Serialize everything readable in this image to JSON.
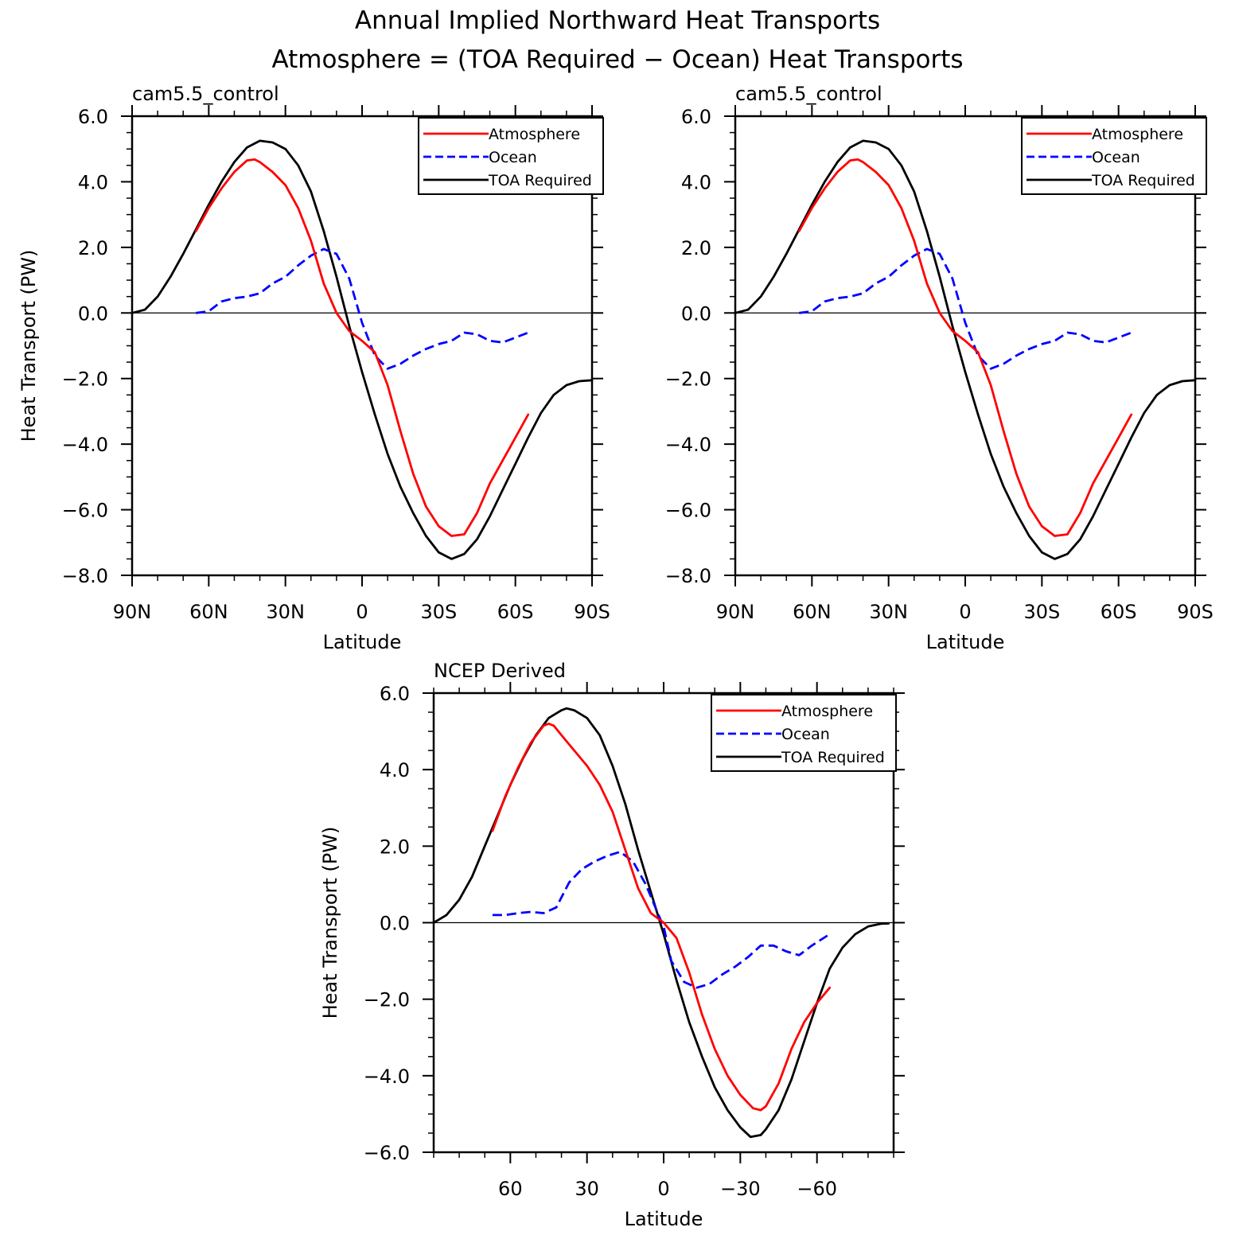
{
  "figure": {
    "title_line1": "Annual Implied Northward Heat Transports",
    "title_line2": "Atmosphere = (TOA Required − Ocean) Heat Transports"
  },
  "colors": {
    "atmosphere": "#ff0000",
    "ocean": "#0000ff",
    "toa": "#000000"
  },
  "chart_data": [
    {
      "type": "line",
      "title": "cam5.5_control",
      "xlabel": "Latitude",
      "ylabel": "Heat Transport (PW)",
      "xlim": [
        90,
        -90
      ],
      "ylim": [
        -8,
        6
      ],
      "xticks": [
        90,
        60,
        30,
        0,
        -30,
        -60,
        -90
      ],
      "xtick_labels": [
        "90N",
        "60N",
        "30N",
        "0",
        "30S",
        "60S",
        "90S"
      ],
      "yticks": [
        6,
        4,
        2,
        0,
        -2,
        -4,
        -6,
        -8
      ],
      "ytick_labels": [
        "6.0",
        "4.0",
        "2.0",
        "0.0",
        "−2.0",
        "−4.0",
        "−6.0",
        "−8.0"
      ],
      "legend_position": "top-right",
      "series": [
        {
          "name": "Atmosphere",
          "style": "solid",
          "color_key": "atmosphere",
          "x": [
            65,
            60,
            55,
            50,
            45,
            42,
            40,
            35,
            30,
            25,
            20,
            15,
            10,
            5,
            0,
            -5,
            -10,
            -15,
            -20,
            -25,
            -30,
            -35,
            -40,
            -45,
            -50,
            -55,
            -60,
            -65
          ],
          "y": [
            2.5,
            3.2,
            3.8,
            4.3,
            4.65,
            4.68,
            4.6,
            4.3,
            3.9,
            3.2,
            2.2,
            0.9,
            0.0,
            -0.55,
            -0.85,
            -1.2,
            -2.2,
            -3.6,
            -4.9,
            -5.9,
            -6.5,
            -6.8,
            -6.75,
            -6.1,
            -5.2,
            -4.5,
            -3.8,
            -3.1
          ]
        },
        {
          "name": "Ocean",
          "style": "dashed",
          "color_key": "ocean",
          "x": [
            65,
            60,
            55,
            50,
            45,
            40,
            35,
            30,
            25,
            20,
            15,
            10,
            5,
            0,
            -5,
            -10,
            -15,
            -20,
            -25,
            -30,
            -35,
            -40,
            -45,
            -50,
            -55,
            -60,
            -65
          ],
          "y": [
            0.0,
            0.05,
            0.35,
            0.45,
            0.5,
            0.6,
            0.9,
            1.1,
            1.45,
            1.75,
            1.95,
            1.8,
            1.05,
            -0.3,
            -1.3,
            -1.7,
            -1.55,
            -1.3,
            -1.1,
            -0.95,
            -0.85,
            -0.6,
            -0.65,
            -0.85,
            -0.9,
            -0.75,
            -0.6
          ]
        },
        {
          "name": "TOA Required",
          "style": "solid",
          "color_key": "toa",
          "x": [
            90,
            85,
            80,
            75,
            70,
            65,
            60,
            55,
            50,
            45,
            40,
            35,
            30,
            25,
            20,
            15,
            10,
            5,
            0,
            -5,
            -10,
            -15,
            -20,
            -25,
            -30,
            -35,
            -40,
            -45,
            -50,
            -55,
            -60,
            -65,
            -70,
            -75,
            -80,
            -85,
            -90
          ],
          "y": [
            0.0,
            0.1,
            0.5,
            1.1,
            1.8,
            2.55,
            3.3,
            4.0,
            4.6,
            5.05,
            5.25,
            5.2,
            5.0,
            4.5,
            3.7,
            2.5,
            1.1,
            -0.4,
            -1.8,
            -3.1,
            -4.3,
            -5.3,
            -6.1,
            -6.8,
            -7.3,
            -7.5,
            -7.35,
            -6.9,
            -6.2,
            -5.4,
            -4.6,
            -3.8,
            -3.05,
            -2.5,
            -2.2,
            -2.08,
            -2.05
          ]
        }
      ]
    },
    {
      "type": "line",
      "title": "cam5.5_control",
      "xlabel": "Latitude",
      "ylabel": "",
      "xlim": [
        90,
        -90
      ],
      "ylim": [
        -8,
        6
      ],
      "xticks": [
        90,
        60,
        30,
        0,
        -30,
        -60,
        -90
      ],
      "xtick_labels": [
        "90N",
        "60N",
        "30N",
        "0",
        "30S",
        "60S",
        "90S"
      ],
      "yticks": [
        6,
        4,
        2,
        0,
        -2,
        -4,
        -6,
        -8
      ],
      "ytick_labels": [
        "6.0",
        "4.0",
        "2.0",
        "0.0",
        "−2.0",
        "−4.0",
        "−6.0",
        "−8.0"
      ],
      "legend_position": "top-right",
      "series": [
        {
          "name": "Atmosphere",
          "style": "solid",
          "color_key": "atmosphere",
          "x": [
            65,
            60,
            55,
            50,
            45,
            42,
            40,
            35,
            30,
            25,
            20,
            15,
            10,
            5,
            0,
            -5,
            -10,
            -15,
            -20,
            -25,
            -30,
            -35,
            -40,
            -45,
            -50,
            -55,
            -60,
            -65
          ],
          "y": [
            2.5,
            3.2,
            3.8,
            4.3,
            4.65,
            4.68,
            4.6,
            4.3,
            3.9,
            3.2,
            2.2,
            0.9,
            0.0,
            -0.55,
            -0.85,
            -1.2,
            -2.2,
            -3.6,
            -4.9,
            -5.9,
            -6.5,
            -6.8,
            -6.75,
            -6.1,
            -5.2,
            -4.5,
            -3.8,
            -3.1
          ]
        },
        {
          "name": "Ocean",
          "style": "dashed",
          "color_key": "ocean",
          "x": [
            65,
            60,
            55,
            50,
            45,
            40,
            35,
            30,
            25,
            20,
            15,
            10,
            5,
            0,
            -5,
            -10,
            -15,
            -20,
            -25,
            -30,
            -35,
            -40,
            -45,
            -50,
            -55,
            -60,
            -65
          ],
          "y": [
            0.0,
            0.05,
            0.35,
            0.45,
            0.5,
            0.6,
            0.9,
            1.1,
            1.45,
            1.75,
            1.95,
            1.8,
            1.05,
            -0.3,
            -1.3,
            -1.7,
            -1.55,
            -1.3,
            -1.1,
            -0.95,
            -0.85,
            -0.6,
            -0.65,
            -0.85,
            -0.9,
            -0.75,
            -0.6
          ]
        },
        {
          "name": "TOA Required",
          "style": "solid",
          "color_key": "toa",
          "x": [
            90,
            85,
            80,
            75,
            70,
            65,
            60,
            55,
            50,
            45,
            40,
            35,
            30,
            25,
            20,
            15,
            10,
            5,
            0,
            -5,
            -10,
            -15,
            -20,
            -25,
            -30,
            -35,
            -40,
            -45,
            -50,
            -55,
            -60,
            -65,
            -70,
            -75,
            -80,
            -85,
            -90
          ],
          "y": [
            0.0,
            0.1,
            0.5,
            1.1,
            1.8,
            2.55,
            3.3,
            4.0,
            4.6,
            5.05,
            5.25,
            5.2,
            5.0,
            4.5,
            3.7,
            2.5,
            1.1,
            -0.4,
            -1.8,
            -3.1,
            -4.3,
            -5.3,
            -6.1,
            -6.8,
            -7.3,
            -7.5,
            -7.35,
            -6.9,
            -6.2,
            -5.4,
            -4.6,
            -3.8,
            -3.05,
            -2.5,
            -2.2,
            -2.08,
            -2.05
          ]
        }
      ]
    },
    {
      "type": "line",
      "title": "NCEP Derived",
      "xlabel": "Latitude",
      "ylabel": "Heat Transport (PW)",
      "xlim": [
        90,
        -90
      ],
      "ylim": [
        -6,
        6
      ],
      "xticks": [
        60,
        30,
        0,
        -30,
        -60
      ],
      "xtick_labels": [
        "60",
        "30",
        "0",
        "−30",
        "−60"
      ],
      "yticks": [
        6,
        4,
        2,
        0,
        -2,
        -4,
        -6
      ],
      "ytick_labels": [
        "6.0",
        "4.0",
        "2.0",
        "0.0",
        "−2.0",
        "−4.0",
        "−6.0"
      ],
      "legend_position": "top-right",
      "series": [
        {
          "name": "Atmosphere",
          "style": "solid",
          "color_key": "atmosphere",
          "x": [
            67,
            62,
            57,
            52,
            47,
            45,
            43,
            40,
            35,
            30,
            25,
            20,
            15,
            10,
            5,
            0,
            -5,
            -10,
            -15,
            -20,
            -25,
            -30,
            -35,
            -38,
            -40,
            -45,
            -50,
            -55,
            -60,
            -65
          ],
          "y": [
            2.4,
            3.3,
            4.05,
            4.7,
            5.15,
            5.2,
            5.15,
            4.9,
            4.5,
            4.1,
            3.6,
            2.9,
            1.9,
            0.9,
            0.25,
            0.0,
            -0.4,
            -1.3,
            -2.4,
            -3.3,
            -4.0,
            -4.5,
            -4.85,
            -4.9,
            -4.8,
            -4.2,
            -3.3,
            -2.6,
            -2.1,
            -1.7
          ]
        },
        {
          "name": "Ocean",
          "style": "dashed",
          "color_key": "ocean",
          "x": [
            67,
            62,
            57,
            52,
            47,
            42,
            37,
            32,
            27,
            22,
            17,
            12,
            7,
            2,
            0,
            -3,
            -8,
            -13,
            -18,
            -23,
            -28,
            -33,
            -38,
            -43,
            -48,
            -53,
            -58,
            -65
          ],
          "y": [
            0.2,
            0.2,
            0.25,
            0.28,
            0.25,
            0.4,
            1.05,
            1.4,
            1.6,
            1.75,
            1.85,
            1.6,
            1.0,
            0.2,
            -0.1,
            -1.0,
            -1.55,
            -1.7,
            -1.6,
            -1.35,
            -1.15,
            -0.9,
            -0.6,
            -0.6,
            -0.75,
            -0.85,
            -0.6,
            -0.3
          ]
        },
        {
          "name": "TOA Required",
          "style": "solid",
          "color_key": "toa",
          "x": [
            90,
            85,
            80,
            75,
            70,
            65,
            60,
            55,
            50,
            45,
            40,
            38,
            35,
            30,
            25,
            20,
            15,
            10,
            5,
            0,
            -5,
            -10,
            -15,
            -20,
            -25,
            -30,
            -34,
            -38,
            -40,
            -45,
            -50,
            -55,
            -60,
            -65,
            -70,
            -75,
            -80,
            -85,
            -88
          ],
          "y": [
            0.0,
            0.2,
            0.6,
            1.2,
            2.0,
            2.8,
            3.6,
            4.3,
            4.9,
            5.35,
            5.55,
            5.6,
            5.55,
            5.35,
            4.9,
            4.1,
            3.1,
            1.9,
            0.8,
            -0.3,
            -1.5,
            -2.6,
            -3.5,
            -4.3,
            -4.9,
            -5.35,
            -5.6,
            -5.55,
            -5.4,
            -4.9,
            -4.1,
            -3.1,
            -2.1,
            -1.2,
            -0.65,
            -0.3,
            -0.1,
            -0.03,
            -0.02
          ]
        }
      ]
    }
  ]
}
